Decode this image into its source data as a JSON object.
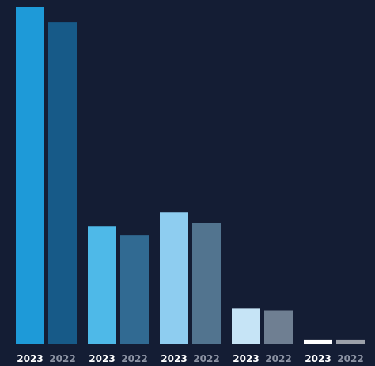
{
  "chart_data": {
    "type": "bar",
    "title": "",
    "xlabel": "",
    "ylabel": "",
    "groups": 5,
    "ylim": [
      0,
      100
    ],
    "grid": false,
    "legend": "none",
    "bars": [
      {
        "label": "2023",
        "value": 100,
        "color": "#1e9ad8",
        "label_color": "#ffffff"
      },
      {
        "label": "2022",
        "value": 95.5,
        "color": "#175a88",
        "label_color": "#8c93a3"
      },
      {
        "label": "2023",
        "value": 35,
        "color": "#4eb9e8",
        "label_color": "#ffffff"
      },
      {
        "label": "2022",
        "value": 32.2,
        "color": "#316a92",
        "label_color": "#8c93a3"
      },
      {
        "label": "2023",
        "value": 39,
        "color": "#8ecdf0",
        "label_color": "#ffffff"
      },
      {
        "label": "2022",
        "value": 35.8,
        "color": "#52748f",
        "label_color": "#8c93a3"
      },
      {
        "label": "2023",
        "value": 10.5,
        "color": "#c6e4f6",
        "label_color": "#ffffff"
      },
      {
        "label": "2022",
        "value": 10,
        "color": "#6f7f92",
        "label_color": "#8c93a3"
      },
      {
        "label": "2023",
        "value": 1.2,
        "color": "#ffffff",
        "label_color": "#ffffff"
      },
      {
        "label": "2022",
        "value": 1.2,
        "color": "#9ca1aa",
        "label_color": "#8c93a3"
      }
    ]
  },
  "colors": {
    "background": "#141d34"
  }
}
